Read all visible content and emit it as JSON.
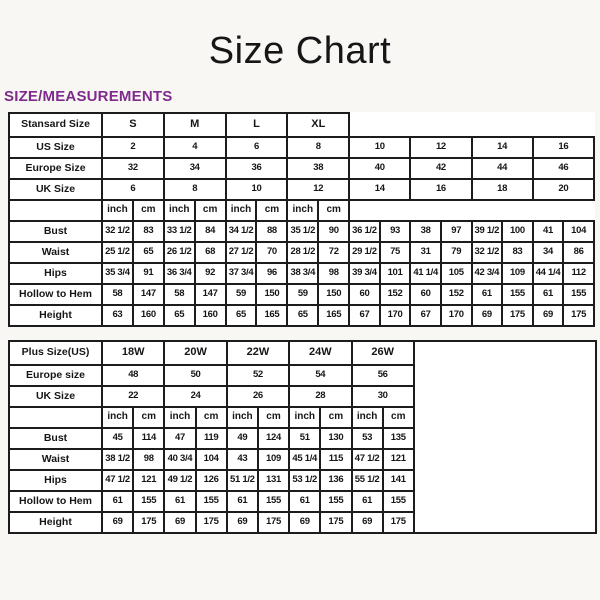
{
  "page": {
    "title": "Size Chart",
    "section_heading": "SIZE/MEASUREMENTS",
    "heading_color": "#7e2b8c",
    "border_color": "#1c1c1c"
  },
  "standard_table": {
    "header_label": "Stansard Size",
    "size_groups": [
      "S",
      "M",
      "L",
      "XL"
    ],
    "rows_simple": [
      {
        "label": "US Size",
        "values": [
          "2",
          "4",
          "6",
          "8",
          "10",
          "12",
          "14",
          "16"
        ]
      },
      {
        "label": "Europe Size",
        "values": [
          "32",
          "34",
          "36",
          "38",
          "40",
          "42",
          "44",
          "46"
        ]
      },
      {
        "label": "UK Size",
        "values": [
          "6",
          "8",
          "10",
          "12",
          "14",
          "16",
          "18",
          "20"
        ]
      }
    ],
    "unit_headers": [
      "inch",
      "cm"
    ],
    "measure_rows": [
      {
        "label": "Bust",
        "values": [
          "32 1/2",
          "83",
          "33 1/2",
          "84",
          "34 1/2",
          "88",
          "35 1/2",
          "90",
          "36 1/2",
          "93",
          "38",
          "97",
          "39 1/2",
          "100",
          "41",
          "104"
        ]
      },
      {
        "label": "Waist",
        "values": [
          "25 1/2",
          "65",
          "26 1/2",
          "68",
          "27 1/2",
          "70",
          "28 1/2",
          "72",
          "29 1/2",
          "75",
          "31",
          "79",
          "32 1/2",
          "83",
          "34",
          "86"
        ]
      },
      {
        "label": "Hips",
        "values": [
          "35 3/4",
          "91",
          "36 3/4",
          "92",
          "37 3/4",
          "96",
          "38 3/4",
          "98",
          "39 3/4",
          "101",
          "41 1/4",
          "105",
          "42 3/4",
          "109",
          "44 1/4",
          "112"
        ]
      },
      {
        "label": "Hollow to Hem",
        "values": [
          "58",
          "147",
          "58",
          "147",
          "59",
          "150",
          "59",
          "150",
          "60",
          "152",
          "60",
          "152",
          "61",
          "155",
          "61",
          "155"
        ]
      },
      {
        "label": "Height",
        "values": [
          "63",
          "160",
          "65",
          "160",
          "65",
          "165",
          "65",
          "165",
          "67",
          "170",
          "67",
          "170",
          "69",
          "175",
          "69",
          "175"
        ]
      }
    ]
  },
  "plus_table": {
    "header_label": "Plus Size(US)",
    "size_groups": [
      "18W",
      "20W",
      "22W",
      "24W",
      "26W"
    ],
    "rows_simple": [
      {
        "label": "Europe size",
        "values": [
          "48",
          "50",
          "52",
          "54",
          "56"
        ]
      },
      {
        "label": "UK Size",
        "values": [
          "22",
          "24",
          "26",
          "28",
          "30"
        ]
      }
    ],
    "unit_headers": [
      "inch",
      "cm"
    ],
    "measure_rows": [
      {
        "label": "Bust",
        "values": [
          "45",
          "114",
          "47",
          "119",
          "49",
          "124",
          "51",
          "130",
          "53",
          "135"
        ]
      },
      {
        "label": "Waist",
        "values": [
          "38 1/2",
          "98",
          "40 3/4",
          "104",
          "43",
          "109",
          "45 1/4",
          "115",
          "47 1/2",
          "121"
        ]
      },
      {
        "label": "Hips",
        "values": [
          "47 1/2",
          "121",
          "49 1/2",
          "126",
          "51 1/2",
          "131",
          "53 1/2",
          "136",
          "55 1/2",
          "141"
        ]
      },
      {
        "label": "Hollow to Hem",
        "values": [
          "61",
          "155",
          "61",
          "155",
          "61",
          "155",
          "61",
          "155",
          "61",
          "155"
        ]
      },
      {
        "label": "Height",
        "values": [
          "69",
          "175",
          "69",
          "175",
          "69",
          "175",
          "69",
          "175",
          "69",
          "175"
        ]
      }
    ]
  }
}
